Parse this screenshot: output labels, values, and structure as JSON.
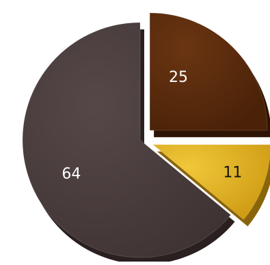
{
  "chart_data": {
    "type": "pie",
    "categories": [
      "",
      "",
      ""
    ],
    "values": [
      25,
      11,
      64
    ],
    "labels": [
      "25",
      "11",
      "64"
    ],
    "title": "",
    "exploded": true,
    "style": "3d",
    "colors": [
      "#5a2a0c",
      "#e2b21f",
      "#4a3c3c"
    ]
  }
}
